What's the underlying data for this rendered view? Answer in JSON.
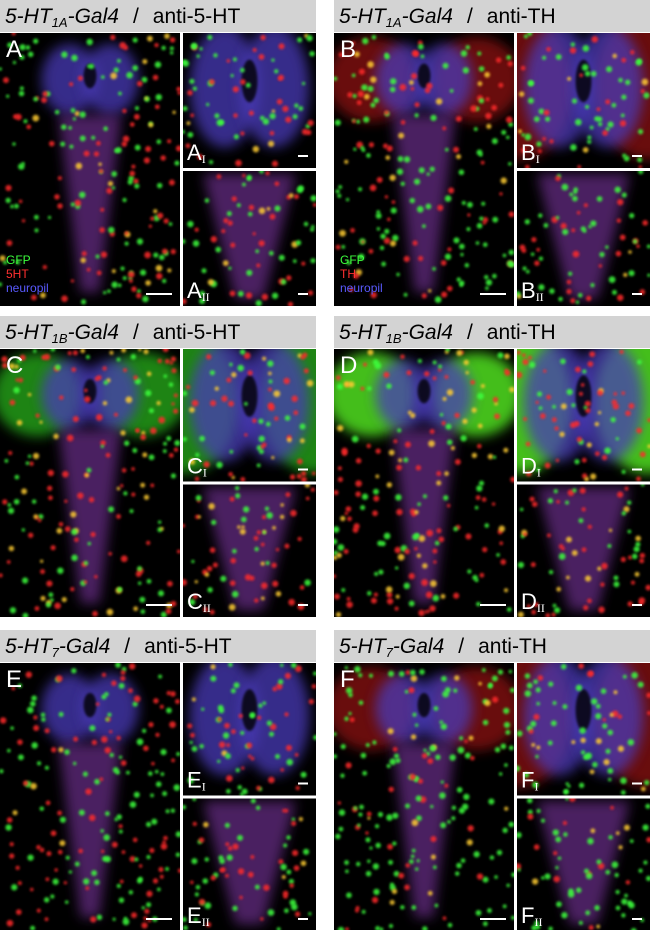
{
  "panels": [
    {
      "letter": "A",
      "genotype": {
        "prefix": "5-HT",
        "sub": "1A",
        "suffix": "-Gal4"
      },
      "separator": "/",
      "antibody": "anti-5-HT",
      "sublabels": [
        {
          "letter": "A",
          "roman": "I"
        },
        {
          "letter": "A",
          "roman": "II"
        }
      ],
      "legend": [
        "GFP",
        "5HT",
        "neuropil"
      ]
    },
    {
      "letter": "B",
      "genotype": {
        "prefix": "5-HT",
        "sub": "1A",
        "suffix": "-Gal4"
      },
      "separator": "/",
      "antibody": "anti-TH",
      "sublabels": [
        {
          "letter": "B",
          "roman": "I"
        },
        {
          "letter": "B",
          "roman": "II"
        }
      ],
      "legend": [
        "GFP",
        "TH",
        "neuropil"
      ]
    },
    {
      "letter": "C",
      "genotype": {
        "prefix": "5-HT",
        "sub": "1B",
        "suffix": "-Gal4"
      },
      "separator": "/",
      "antibody": "anti-5-HT",
      "sublabels": [
        {
          "letter": "C",
          "roman": "I"
        },
        {
          "letter": "C",
          "roman": "II"
        }
      ]
    },
    {
      "letter": "D",
      "genotype": {
        "prefix": "5-HT",
        "sub": "1B",
        "suffix": "-Gal4"
      },
      "separator": "/",
      "antibody": "anti-TH",
      "sublabels": [
        {
          "letter": "D",
          "roman": "I"
        },
        {
          "letter": "D",
          "roman": "II"
        }
      ]
    },
    {
      "letter": "E",
      "genotype": {
        "prefix": "5-HT",
        "sub": "7",
        "suffix": "-Gal4"
      },
      "separator": "/",
      "antibody": "anti-5-HT",
      "sublabels": [
        {
          "letter": "E",
          "roman": "I"
        },
        {
          "letter": "E",
          "roman": "II"
        }
      ]
    },
    {
      "letter": "F",
      "genotype": {
        "prefix": "5-HT",
        "sub": "7",
        "suffix": "-Gal4"
      },
      "separator": "/",
      "antibody": "anti-TH",
      "sublabels": [
        {
          "letter": "F",
          "roman": "I"
        },
        {
          "letter": "F",
          "roman": "II"
        }
      ]
    }
  ]
}
